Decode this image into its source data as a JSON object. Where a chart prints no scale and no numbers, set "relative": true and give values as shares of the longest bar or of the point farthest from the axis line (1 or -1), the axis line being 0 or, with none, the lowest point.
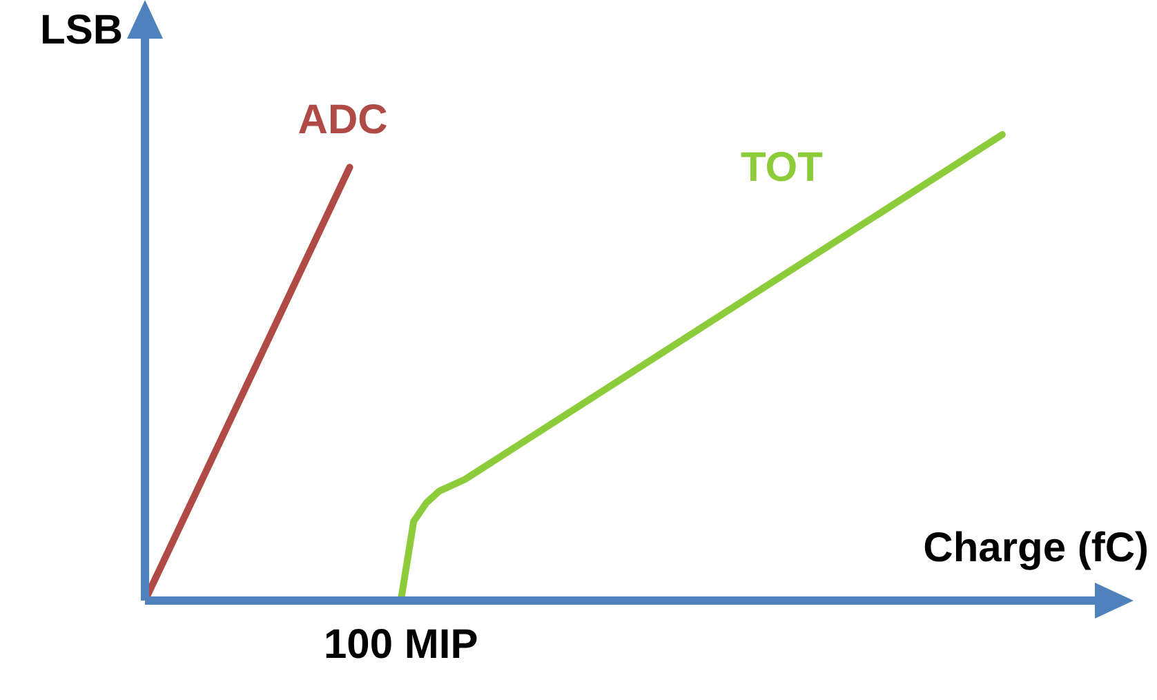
{
  "chart_data": {
    "type": "line",
    "relative": true,
    "xlabel": "Charge (fC)",
    "ylabel": "LSB",
    "legend": false,
    "marker": "none",
    "annotations": [
      "100 MIP"
    ],
    "categories": [
      null,
      null,
      null,
      null,
      null,
      null,
      null,
      null,
      null,
      null,
      null,
      null,
      null,
      null,
      null,
      null,
      null,
      null,
      null,
      null,
      null,
      null,
      null,
      null,
      null,
      null,
      null,
      null,
      null,
      null,
      null,
      null,
      null,
      null,
      null,
      null,
      null,
      null,
      null,
      null,
      null,
      null,
      null,
      null,
      null,
      null,
      null,
      null,
      null,
      null,
      null,
      null,
      null,
      null,
      null,
      null,
      null,
      null,
      null,
      null,
      null,
      null,
      null,
      null,
      null,
      null,
      null,
      null,
      null,
      null,
      null,
      null
    ],
    "series": [
      {
        "name": "ADC",
        "color": "#b04a45",
        "values": [
          0,
          null,
          null,
          null,
          null,
          null,
          null,
          null,
          null,
          null,
          null,
          null,
          null,
          null,
          null,
          null,
          0.93,
          null,
          null,
          null,
          null,
          null,
          null,
          null,
          null,
          null,
          null,
          null,
          null,
          null,
          null,
          null,
          null,
          null,
          null,
          null,
          null,
          null,
          null,
          null,
          null,
          null,
          null,
          null,
          null,
          null,
          null,
          null,
          null,
          null,
          null,
          null,
          null,
          null,
          null,
          null,
          null,
          null,
          null,
          null,
          null,
          null,
          null,
          null,
          null,
          null,
          null,
          null,
          null,
          null,
          null,
          null
        ]
      },
      {
        "name": "TOT",
        "color": "#8ccc3a",
        "values": [
          null,
          null,
          null,
          null,
          null,
          null,
          null,
          null,
          null,
          null,
          null,
          null,
          null,
          null,
          null,
          null,
          null,
          null,
          null,
          null,
          0,
          0.17,
          0.21,
          0.235,
          null,
          0.26,
          null,
          null,
          null,
          null,
          null,
          null,
          null,
          null,
          null,
          null,
          null,
          null,
          null,
          null,
          null,
          null,
          null,
          null,
          null,
          null,
          null,
          null,
          null,
          null,
          null,
          null,
          null,
          null,
          null,
          null,
          null,
          null,
          null,
          null,
          null,
          null,
          null,
          null,
          null,
          null,
          null,
          1,
          null,
          null,
          null,
          null
        ]
      }
    ]
  }
}
